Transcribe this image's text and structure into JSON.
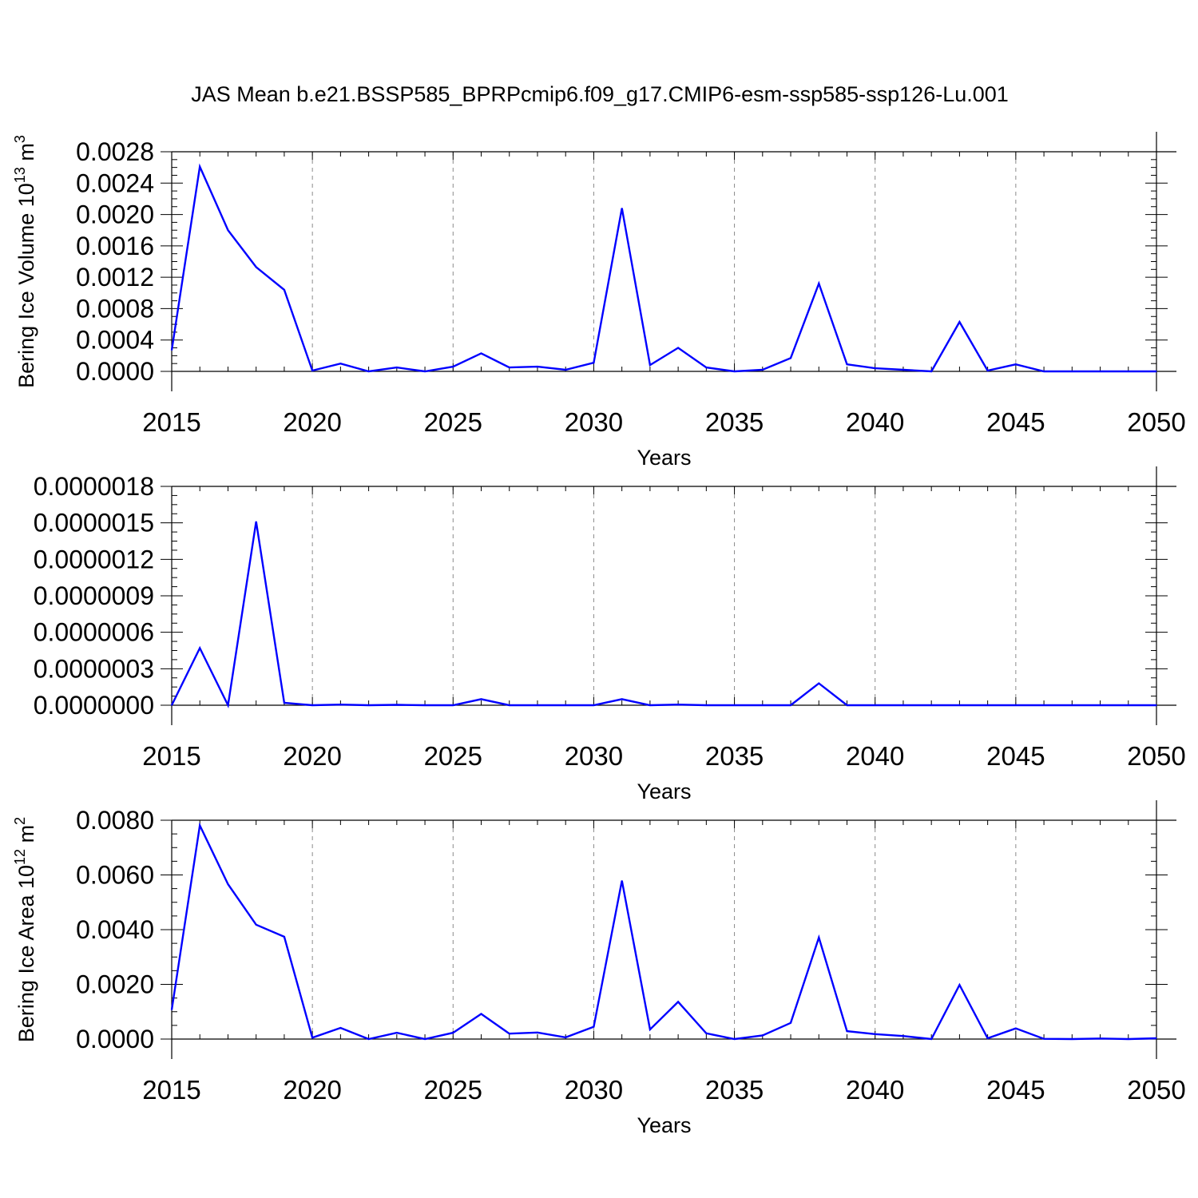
{
  "title": "JAS Mean b.e21.BSSP585_BPRPcmip6.f09_g17.CMIP6-esm-ssp585-ssp126-Lu.001",
  "colors": {
    "line": "#0000ff",
    "grid": "#8a8a8a",
    "frame": "#000000"
  },
  "chart_data": [
    {
      "type": "line",
      "ylabel": {
        "base": "Bering Ice Volume 10",
        "exp1": "13",
        "mid": " m",
        "exp2": "3"
      },
      "xlabel": "Years",
      "xlim": [
        2015,
        2050
      ],
      "ylim": [
        0,
        0.0028
      ],
      "xticks": [
        "2015",
        "2020",
        "2025",
        "2030",
        "2035",
        "2040",
        "2045",
        "2050"
      ],
      "yticks": [
        "0.0000",
        "0.0004",
        "0.0008",
        "0.0012",
        "0.0016",
        "0.0020",
        "0.0024",
        "0.0028"
      ],
      "grid": "vertical dashed at major x ticks",
      "x": [
        2015,
        2016,
        2017,
        2018,
        2019,
        2020,
        2021,
        2022,
        2023,
        2024,
        2025,
        2026,
        2027,
        2028,
        2029,
        2030,
        2031,
        2032,
        2033,
        2034,
        2035,
        2036,
        2037,
        2038,
        2039,
        2040,
        2041,
        2042,
        2043,
        2044,
        2045,
        2046,
        2047,
        2048,
        2049,
        2050
      ],
      "values": [
        0.00027,
        0.00261,
        0.0018,
        0.00133,
        0.00104,
        1e-05,
        0.0001,
        0.0,
        5e-05,
        0.0,
        6e-05,
        0.00023,
        5e-05,
        6e-05,
        2e-05,
        0.00011,
        0.00208,
        8e-05,
        0.0003,
        5e-05,
        0.0,
        2e-05,
        0.00017,
        0.00112,
        9e-05,
        4e-05,
        2e-05,
        0.0,
        0.00063,
        1e-05,
        9e-05,
        0.0,
        0.0,
        0.0,
        0.0,
        0.0
      ]
    },
    {
      "type": "line",
      "ylabel": null,
      "xlabel": "Years",
      "xlim": [
        2015,
        2050
      ],
      "ylim": [
        0,
        1.8e-06
      ],
      "xticks": [
        "2015",
        "2020",
        "2025",
        "2030",
        "2035",
        "2040",
        "2045",
        "2050"
      ],
      "yticks": [
        "0.0000000",
        "0.0000003",
        "0.0000006",
        "0.0000009",
        "0.0000012",
        "0.0000015",
        "0.0000018"
      ],
      "grid": "vertical dashed at major x ticks",
      "x": [
        2015,
        2016,
        2017,
        2018,
        2019,
        2020,
        2021,
        2022,
        2023,
        2024,
        2025,
        2026,
        2027,
        2028,
        2029,
        2030,
        2031,
        2032,
        2033,
        2034,
        2035,
        2036,
        2037,
        2038,
        2039,
        2040,
        2041,
        2042,
        2043,
        2044,
        2045,
        2046,
        2047,
        2048,
        2049,
        2050
      ],
      "values": [
        0.0,
        4.7e-07,
        0.0,
        1.51e-06,
        2e-08,
        0.0,
        5e-09,
        0.0,
        3e-09,
        0.0,
        0.0,
        5e-08,
        0.0,
        0.0,
        0.0,
        0.0,
        5e-08,
        0.0,
        5e-09,
        0.0,
        0.0,
        0.0,
        0.0,
        1.8e-07,
        0.0,
        0.0,
        0.0,
        0.0,
        0.0,
        0.0,
        0.0,
        0.0,
        0.0,
        0.0,
        0.0,
        0.0
      ]
    },
    {
      "type": "line",
      "ylabel": {
        "base": "Bering Ice Area 10",
        "exp1": "12",
        "mid": " m",
        "exp2": "2"
      },
      "xlabel": "Years",
      "xlim": [
        2015,
        2050
      ],
      "ylim": [
        0,
        0.008
      ],
      "xticks": [
        "2015",
        "2020",
        "2025",
        "2030",
        "2035",
        "2040",
        "2045",
        "2050"
      ],
      "yticks": [
        "0.0000",
        "0.0020",
        "0.0040",
        "0.0060",
        "0.0080"
      ],
      "grid": "vertical dashed at major x ticks",
      "x": [
        2015,
        2016,
        2017,
        2018,
        2019,
        2020,
        2021,
        2022,
        2023,
        2024,
        2025,
        2026,
        2027,
        2028,
        2029,
        2030,
        2031,
        2032,
        2033,
        2034,
        2035,
        2036,
        2037,
        2038,
        2039,
        2040,
        2041,
        2042,
        2043,
        2044,
        2045,
        2046,
        2047,
        2048,
        2049,
        2050
      ],
      "values": [
        0.00107,
        0.00781,
        0.00566,
        0.00418,
        0.00374,
        5e-05,
        0.00041,
        0.0,
        0.00023,
        0.0,
        0.00023,
        0.00092,
        0.0002,
        0.00024,
        6e-05,
        0.00045,
        0.00579,
        0.00035,
        0.00136,
        0.00021,
        0.0,
        0.00013,
        0.00059,
        0.00371,
        0.00029,
        0.00018,
        0.00011,
        0.0,
        0.00198,
        3e-05,
        0.00039,
        1e-05,
        0.0,
        2e-05,
        0.0,
        3e-05
      ]
    }
  ]
}
